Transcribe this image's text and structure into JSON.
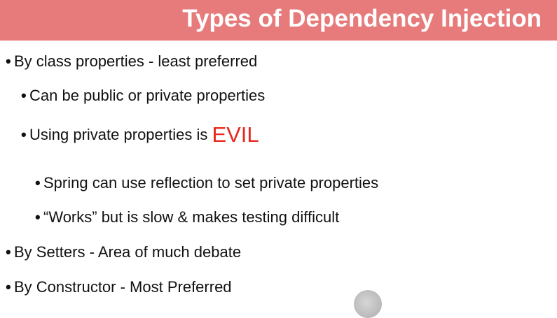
{
  "title": "Types of Dependency Injection",
  "bullets": {
    "b1": "By class properties - least preferred",
    "b1_1": "Can be public or private properties",
    "b1_2_prefix": "Using private properties is ",
    "b1_2_emph": "EVIL",
    "b1_2_1": "Spring can use reflection to set private properties",
    "b1_2_2": "“Works” but is slow & makes testing difficult",
    "b2": "By Setters - Area of much debate",
    "b3": "By Constructor - Most Preferred"
  },
  "colors": {
    "title_bar": "#e77b7b",
    "title_text": "#ffffff",
    "emphasis": "#e8281f",
    "text": "#111111"
  }
}
